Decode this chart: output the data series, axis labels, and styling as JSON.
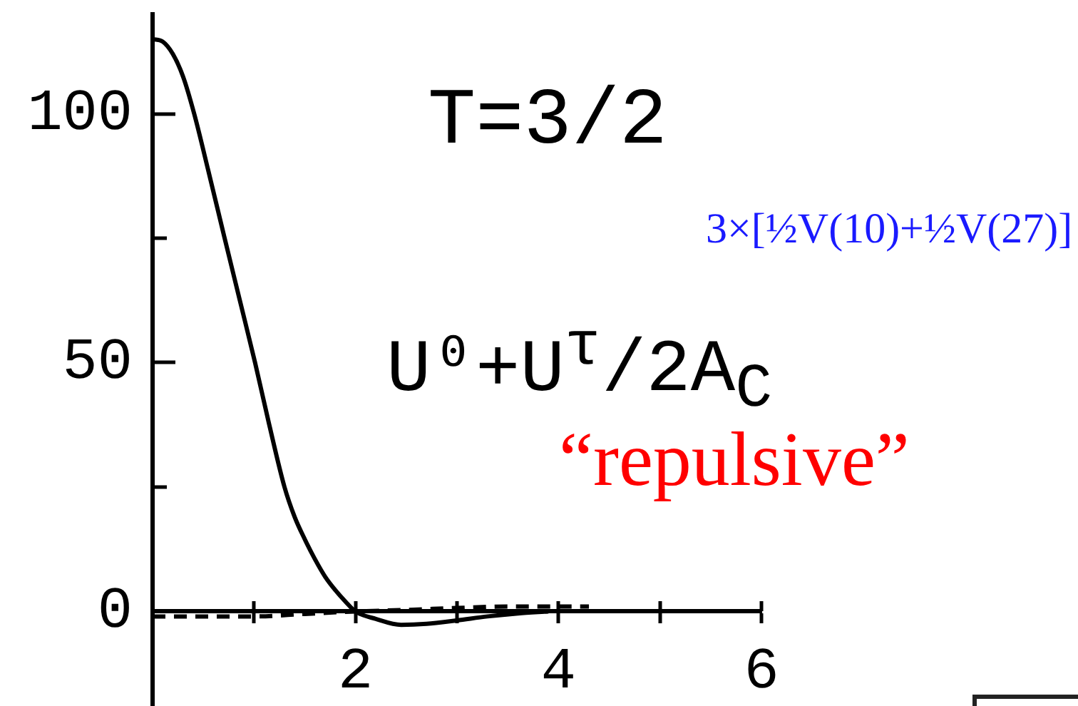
{
  "chart_data": {
    "type": "line",
    "annotations": [
      "T=3/2",
      "3×[½V(10)+½V(27)]",
      "U⁰+U$^{τ}$/2A$_{C}$",
      "“repulsive”"
    ],
    "xlim": [
      0,
      6
    ],
    "xticks": [
      {
        "value": 1,
        "label": null
      },
      2,
      {
        "value": 3,
        "label": null
      },
      4,
      {
        "value": 5,
        "label": null
      },
      6
    ],
    "ylim": [
      -19,
      120
    ],
    "yticks": [
      0,
      {
        "value": 25,
        "label": null
      },
      50,
      {
        "value": 75,
        "label": null
      },
      100
    ],
    "marker": "none",
    "series": [
      {
        "color": "#000000",
        "x": [
          0,
          0.1,
          0.2,
          0.3,
          0.41,
          0.55,
          0.71,
          0.86,
          1.01,
          1.15,
          1.3,
          1.4,
          1.5,
          1.6,
          1.7,
          1.8,
          1.9,
          2.0,
          2.2,
          2.45,
          2.7,
          3.0,
          3.3,
          3.6,
          3.9
        ],
        "values": [
          115,
          114.5,
          112,
          107.5,
          100,
          88.5,
          75,
          62.5,
          50,
          37.5,
          25,
          19,
          14.5,
          10.5,
          7,
          4.3,
          2,
          0,
          -1.5,
          -2.7,
          -2.5,
          -1.8,
          -1,
          -0.4,
          0
        ]
      },
      {
        "color": "#000000",
        "line_style": "dashed",
        "x": [
          0,
          1,
          1.5,
          2,
          2.5,
          3,
          3.5,
          4,
          4.3
        ],
        "values": [
          -1,
          -1,
          -0.5,
          0,
          0.3,
          0.7,
          1,
          1,
          1
        ]
      }
    ]
  }
}
